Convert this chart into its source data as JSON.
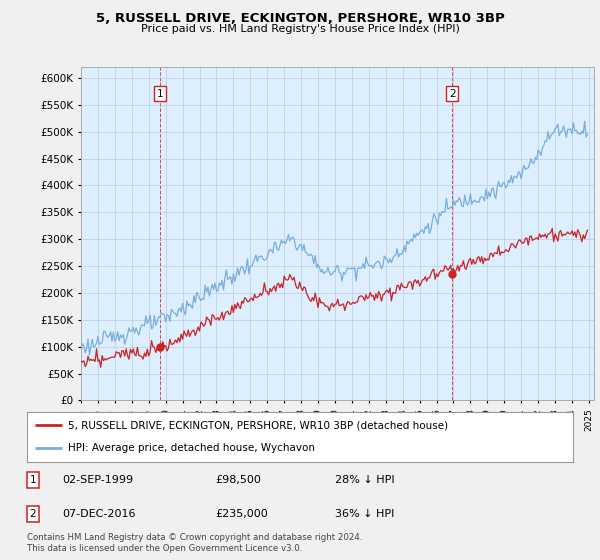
{
  "title": "5, RUSSELL DRIVE, ECKINGTON, PERSHORE, WR10 3BP",
  "subtitle": "Price paid vs. HM Land Registry's House Price Index (HPI)",
  "ylim": [
    0,
    620000
  ],
  "yticks": [
    0,
    50000,
    100000,
    150000,
    200000,
    250000,
    300000,
    350000,
    400000,
    450000,
    500000,
    550000,
    600000
  ],
  "ytick_labels": [
    "£0",
    "£50K",
    "£100K",
    "£150K",
    "£200K",
    "£250K",
    "£300K",
    "£350K",
    "£400K",
    "£450K",
    "£500K",
    "£550K",
    "£600K"
  ],
  "hpi_color": "#7aaddb",
  "price_color": "#cc2222",
  "legend_line1": "5, RUSSELL DRIVE, ECKINGTON, PERSHORE, WR10 3BP (detached house)",
  "legend_line2": "HPI: Average price, detached house, Wychavon",
  "annot1_date": "02-SEP-1999",
  "annot1_price": "£98,500",
  "annot1_hpi": "28% ↓ HPI",
  "annot2_date": "07-DEC-2016",
  "annot2_price": "£235,000",
  "annot2_hpi": "36% ↓ HPI",
  "footer": "Contains HM Land Registry data © Crown copyright and database right 2024.\nThis data is licensed under the Open Government Licence v3.0.",
  "background_color": "#f0f0f0",
  "plot_bg_color": "#ddeeff"
}
